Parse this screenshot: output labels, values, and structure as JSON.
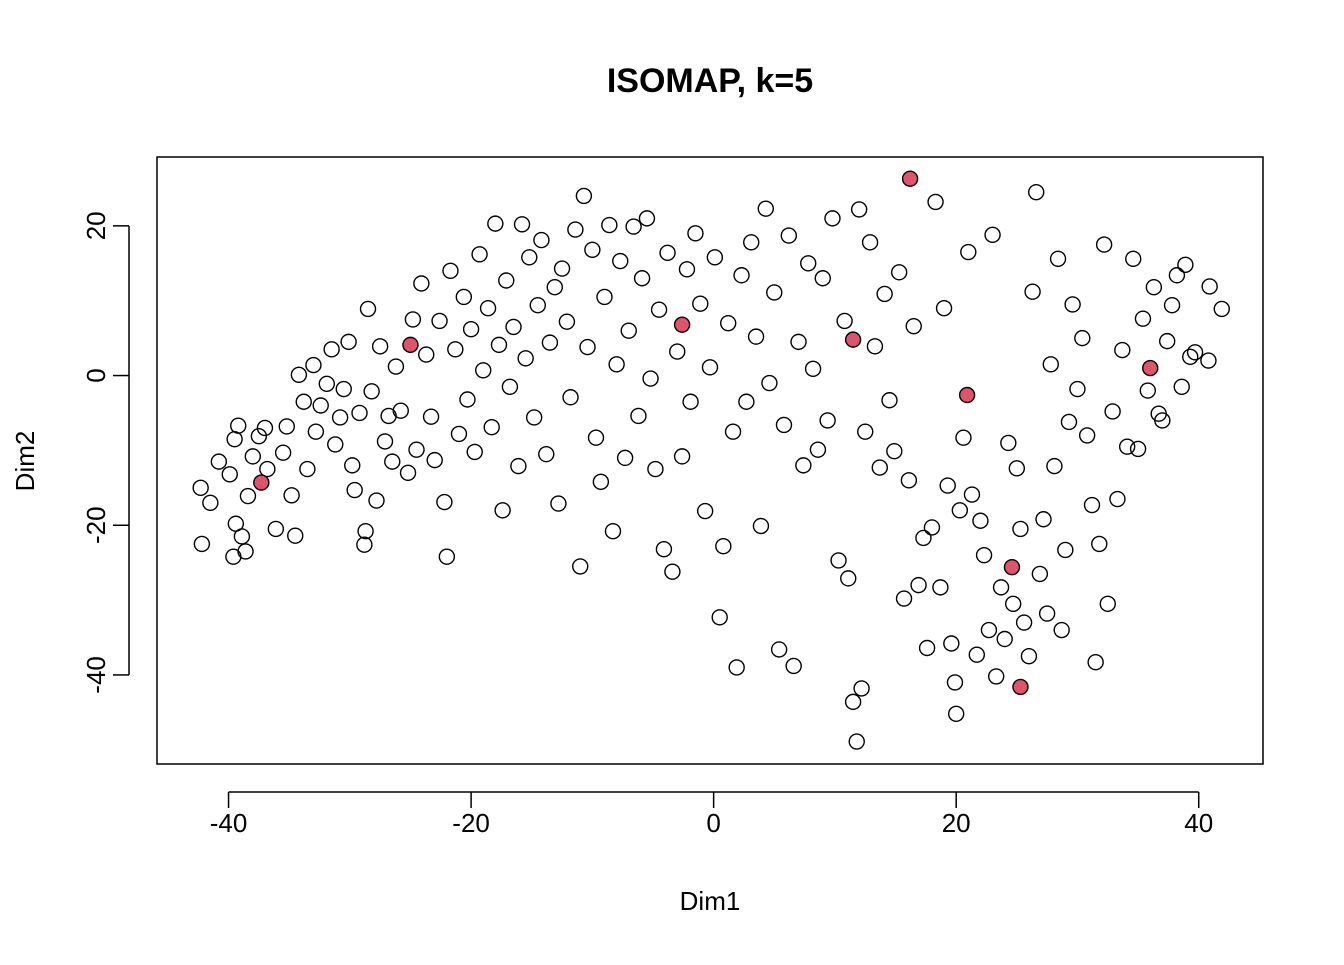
{
  "chart_data": {
    "type": "scatter",
    "title": "ISOMAP, k=5",
    "x_label": "Dim1",
    "y_label": "Dim2",
    "xlim": [
      -45.9,
      45.3
    ],
    "ylim": [
      -51.9,
      29.2
    ],
    "xticks": [
      -40,
      -20,
      0,
      20,
      40
    ],
    "yticks": [
      -40,
      -20,
      0,
      20
    ],
    "series": [
      {
        "color": "#000000",
        "filled": false,
        "x": [
          -42.3,
          -42.2,
          -41.5,
          -40.8,
          -39.9,
          -39.5,
          -39.2,
          -39.4,
          -39.6,
          -38.9,
          -38.6,
          -38.4,
          -38.0,
          -37.5,
          -37.0,
          -36.8,
          -36.1,
          -35.5,
          -35.2,
          -34.8,
          -34.5,
          -34.2,
          -33.8,
          -33.5,
          -33.0,
          -32.8,
          -32.4,
          -31.9,
          -31.5,
          -31.2,
          -30.8,
          -30.5,
          -30.1,
          -29.8,
          -29.6,
          -29.2,
          -28.8,
          -28.7,
          -28.5,
          -28.2,
          -27.8,
          -27.5,
          -27.1,
          -26.8,
          -26.5,
          -26.2,
          -25.8,
          -25.2,
          -24.8,
          -24.5,
          -24.1,
          -23.7,
          -23.3,
          -23.0,
          -22.6,
          -22.2,
          -22.0,
          -21.7,
          -21.3,
          -21.0,
          -20.6,
          -20.3,
          -20.0,
          -19.7,
          -19.3,
          -19.0,
          -18.6,
          -18.3,
          -18.0,
          -17.7,
          -17.4,
          -17.1,
          -16.8,
          -16.5,
          -16.1,
          -15.8,
          -15.5,
          -15.2,
          -14.8,
          -14.5,
          -14.2,
          -13.8,
          -13.5,
          -13.1,
          -12.8,
          -12.5,
          -12.1,
          -11.8,
          -11.4,
          -11.0,
          -10.7,
          -10.4,
          -10.0,
          -9.7,
          -9.3,
          -9.0,
          -8.6,
          -8.3,
          -8.0,
          -7.7,
          -7.3,
          -7.0,
          -6.6,
          -6.2,
          -5.9,
          -5.5,
          -5.2,
          -4.8,
          -4.5,
          -4.1,
          -3.8,
          -3.4,
          -3.0,
          -2.6,
          -2.2,
          -1.9,
          -1.5,
          -1.1,
          -0.7,
          -0.3,
          0.1,
          0.5,
          0.8,
          1.2,
          1.6,
          1.9,
          2.3,
          2.7,
          3.1,
          3.5,
          3.9,
          4.3,
          4.6,
          5.0,
          5.4,
          5.8,
          6.2,
          6.6,
          7.0,
          7.4,
          7.8,
          8.2,
          8.6,
          9.0,
          9.4,
          9.8,
          10.3,
          10.8,
          11.1,
          11.5,
          11.8,
          12.0,
          12.2,
          12.5,
          12.9,
          13.3,
          13.7,
          14.1,
          14.5,
          14.9,
          15.3,
          15.7,
          16.1,
          16.5,
          16.9,
          17.3,
          17.6,
          18.0,
          18.3,
          18.7,
          19.0,
          19.3,
          19.6,
          19.9,
          20.0,
          20.3,
          20.6,
          21.0,
          21.3,
          21.7,
          22.0,
          22.3,
          22.7,
          23.0,
          23.3,
          23.7,
          24.0,
          24.3,
          24.7,
          25.0,
          25.3,
          25.6,
          26.0,
          26.3,
          26.6,
          26.9,
          27.2,
          27.5,
          27.8,
          28.1,
          28.4,
          28.7,
          29.0,
          29.3,
          29.6,
          30.0,
          30.4,
          30.8,
          31.2,
          31.5,
          31.8,
          32.2,
          32.5,
          32.9,
          33.3,
          33.7,
          34.1,
          34.6,
          35.0,
          35.4,
          35.8,
          36.3,
          36.7,
          37.0,
          37.4,
          37.8,
          38.2,
          38.6,
          38.9,
          39.3,
          39.7,
          40.9,
          40.8,
          41.9
        ],
        "values": [
          -15,
          -22.5,
          -17,
          -11.5,
          -13.2,
          -8.5,
          -6.7,
          -19.8,
          -24.2,
          -21.5,
          -23.5,
          -16.1,
          -10.8,
          -8.1,
          -7.0,
          -12.5,
          -20.5,
          -10.3,
          -6.8,
          -16.0,
          -21.4,
          0.1,
          -3.5,
          -12.5,
          1.4,
          -7.5,
          -4.0,
          -1.1,
          3.5,
          -9.2,
          -5.6,
          -1.8,
          4.5,
          -12.0,
          -15.3,
          -5.0,
          -22.6,
          -20.8,
          8.9,
          -2.1,
          -16.7,
          3.9,
          -8.8,
          -5.4,
          -11.5,
          1.2,
          -4.7,
          -13.0,
          7.5,
          -9.9,
          12.3,
          2.8,
          -5.5,
          -11.3,
          7.3,
          -16.9,
          -24.2,
          14.0,
          3.5,
          -7.8,
          10.5,
          -3.2,
          6.2,
          -10.2,
          16.2,
          0.7,
          9.0,
          -6.9,
          20.3,
          4.1,
          -18.0,
          12.7,
          -1.5,
          6.5,
          -12.1,
          20.2,
          2.3,
          15.8,
          -5.6,
          9.4,
          18.1,
          -10.5,
          4.4,
          11.8,
          -17.1,
          14.3,
          7.2,
          -2.9,
          19.5,
          -25.5,
          24.0,
          3.8,
          16.8,
          -8.3,
          -14.2,
          10.5,
          20.1,
          -20.8,
          1.5,
          15.3,
          -11.0,
          6.0,
          19.9,
          -5.4,
          13.0,
          21.0,
          -0.4,
          -12.5,
          8.8,
          -23.2,
          16.4,
          -26.2,
          3.2,
          -10.8,
          14.2,
          -3.5,
          19.0,
          9.6,
          -18.1,
          1.1,
          15.8,
          -32.3,
          -22.8,
          7.0,
          -7.5,
          -39.0,
          13.4,
          -3.5,
          17.8,
          5.2,
          -20.1,
          22.3,
          -1.0,
          11.1,
          -36.6,
          -6.6,
          18.7,
          -38.8,
          4.5,
          -12.0,
          15.0,
          0.9,
          -9.9,
          13.0,
          -6.0,
          21.0,
          -24.7,
          7.3,
          -27.1,
          -43.6,
          -48.9,
          22.2,
          -41.8,
          -7.5,
          17.8,
          3.9,
          -12.3,
          10.9,
          -3.3,
          -10.1,
          13.8,
          -29.8,
          -14.0,
          6.6,
          -28.0,
          -21.7,
          -36.4,
          -20.3,
          23.2,
          -28.3,
          9.0,
          -14.7,
          -35.8,
          -41.0,
          -45.2,
          -18.0,
          -8.3,
          16.5,
          -15.9,
          -37.3,
          -19.4,
          -24.0,
          -34.0,
          18.8,
          -40.2,
          -28.3,
          -35.2,
          -9.0,
          -30.5,
          -12.4,
          -20.5,
          -33.0,
          -37.5,
          11.2,
          24.5,
          -26.5,
          -19.2,
          -31.8,
          1.5,
          -12.1,
          15.6,
          -34.0,
          -23.3,
          -6.2,
          9.5,
          -1.8,
          5.0,
          -8.0,
          -17.3,
          -38.3,
          -22.5,
          17.5,
          -30.5,
          -4.8,
          -16.5,
          3.4,
          -9.5,
          15.6,
          -9.8,
          7.6,
          -2.0,
          11.8,
          -5.1,
          -6.0,
          4.6,
          9.4,
          13.4,
          -1.5,
          14.8,
          2.5,
          3.1,
          11.9,
          2.0,
          8.9
        ]
      },
      {
        "color": "#DF536B",
        "filled": true,
        "x": [
          -37.3,
          -25.0,
          -2.6,
          11.5,
          16.2,
          20.9,
          36.0,
          24.6,
          25.3
        ],
        "values": [
          -14.3,
          4.1,
          6.8,
          4.8,
          26.3,
          -2.6,
          1.0,
          -25.6,
          -41.6
        ]
      }
    ]
  }
}
